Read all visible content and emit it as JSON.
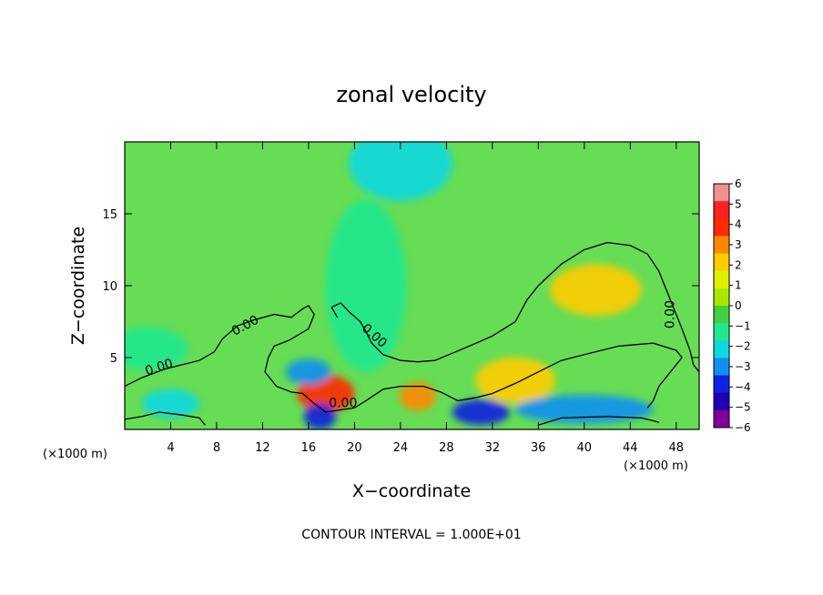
{
  "chart_data": {
    "type": "heatmap",
    "title": "zonal velocity",
    "xlabel": "X−coordinate",
    "ylabel": "Z−coordinate",
    "x_unit": "(×1000 m)",
    "x_range": [
      0,
      50
    ],
    "y_range": [
      0,
      20
    ],
    "x_ticks": [
      4,
      8,
      12,
      16,
      20,
      24,
      28,
      32,
      36,
      40,
      44,
      48
    ],
    "x_tick_labels": [
      "4",
      "8",
      "12",
      "16",
      "20",
      "24",
      "28",
      "32",
      "36",
      "40",
      "44",
      "48"
    ],
    "y_ticks": [
      5,
      10,
      15
    ],
    "y_tick_labels": [
      "5",
      "10",
      "15"
    ],
    "colorbar": {
      "levels": [
        6,
        5,
        4,
        3,
        2,
        1,
        0,
        -1,
        -2,
        -3,
        -4,
        -5,
        -6
      ],
      "labels": [
        "6",
        "5",
        "4",
        "3",
        "2",
        "1",
        "0",
        "−1",
        "−2",
        "−3",
        "−4",
        "−5",
        "−6"
      ],
      "colors": [
        "#f09090",
        "#ff2020",
        "#ff2a00",
        "#ff8800",
        "#ffcc00",
        "#e0f000",
        "#a8e800",
        "#40d040",
        "#20e890",
        "#10d8e0",
        "#1090f0",
        "#1020e0",
        "#2000b0",
        "#800098"
      ]
    },
    "contour_label": "0.00",
    "contour_interval_text": "CONTOUR INTERVAL = 1.000E+01",
    "field_features": [
      {
        "x": 24,
        "z": 18.5,
        "value": -2.6,
        "rx": 4.5,
        "rz": 2.6
      },
      {
        "x": 21,
        "z": 10,
        "value": -1.6,
        "rx": 3.5,
        "rz": 6
      },
      {
        "x": 41,
        "z": 9.7,
        "value": 2.0,
        "rx": 4,
        "rz": 1.8
      },
      {
        "x": 34,
        "z": 3.4,
        "value": 2.4,
        "rx": 3.5,
        "rz": 1.6
      },
      {
        "x": 17.5,
        "z": 2.5,
        "value": 4.4,
        "rx": 2.5,
        "rz": 1.3
      },
      {
        "x": 25.5,
        "z": 2.3,
        "value": 3.8,
        "rx": 1.6,
        "rz": 1.0
      },
      {
        "x": 16,
        "z": 4.0,
        "value": -3.8,
        "rx": 2.0,
        "rz": 0.9
      },
      {
        "x": 17,
        "z": 0.9,
        "value": -4.6,
        "rx": 1.4,
        "rz": 0.9
      },
      {
        "x": 40,
        "z": 1.4,
        "value": -3.2,
        "rx": 6,
        "rz": 1.0
      },
      {
        "x": 31,
        "z": 1.2,
        "value": -4.2,
        "rx": 2.5,
        "rz": 0.9
      },
      {
        "x": 4,
        "z": 1.8,
        "value": -2.8,
        "rx": 2.5,
        "rz": 1.0
      },
      {
        "x": 2,
        "z": 5.6,
        "value": -1.8,
        "rx": 3.5,
        "rz": 1.5
      }
    ],
    "contour_zero": [
      {
        "closed": false,
        "points": [
          [
            0,
            3
          ],
          [
            1.5,
            3.6
          ],
          [
            3.5,
            4.2
          ],
          [
            5,
            4.5
          ],
          [
            6.5,
            4.8
          ],
          [
            7.8,
            5.4
          ],
          [
            8.5,
            6.3
          ],
          [
            9.8,
            7.2
          ],
          [
            11.2,
            7.6
          ],
          [
            13,
            8.0
          ],
          [
            14.5,
            7.8
          ],
          [
            15.5,
            8.4
          ],
          [
            16,
            8.6
          ],
          [
            16.5,
            8.0
          ],
          [
            16,
            7.0
          ],
          [
            14.3,
            6.2
          ],
          [
            13,
            5.8
          ],
          [
            12.5,
            5.0
          ],
          [
            12.2,
            4.0
          ],
          [
            13.2,
            3.0
          ],
          [
            14.5,
            2.6
          ],
          [
            15.5,
            2.5
          ],
          [
            16.5,
            1.8
          ],
          [
            17.5,
            1.2
          ],
          [
            20,
            1.5
          ],
          [
            21,
            2.0
          ],
          [
            22.5,
            2.8
          ],
          [
            24,
            3.0
          ],
          [
            26,
            3.0
          ],
          [
            27.5,
            2.6
          ],
          [
            29,
            2.0
          ],
          [
            30.5,
            2.2
          ],
          [
            32,
            2.5
          ],
          [
            34,
            3.2
          ],
          [
            36,
            4.0
          ],
          [
            38,
            4.8
          ],
          [
            40,
            5.2
          ],
          [
            43,
            5.8
          ],
          [
            46,
            6.0
          ],
          [
            48,
            5.5
          ],
          [
            48.5,
            5.0
          ],
          [
            47.5,
            4.0
          ],
          [
            46.5,
            3.0
          ],
          [
            46,
            2.0
          ],
          [
            45.5,
            1.5
          ]
        ]
      },
      {
        "closed": false,
        "points": [
          [
            18.5,
            7.8
          ],
          [
            18,
            8.5
          ],
          [
            18.8,
            8.8
          ],
          [
            19.5,
            8.2
          ],
          [
            20.5,
            7.5
          ],
          [
            21,
            6.8
          ],
          [
            21.5,
            6.0
          ],
          [
            22.5,
            5.2
          ],
          [
            24,
            4.8
          ],
          [
            25.5,
            4.7
          ],
          [
            27,
            4.8
          ],
          [
            28.5,
            5.3
          ],
          [
            30,
            5.8
          ],
          [
            32,
            6.5
          ],
          [
            34,
            7.5
          ],
          [
            35,
            9.0
          ],
          [
            36,
            10.0
          ],
          [
            38,
            11.5
          ],
          [
            40,
            12.5
          ],
          [
            42,
            13.0
          ],
          [
            44,
            12.8
          ],
          [
            45.5,
            12.2
          ],
          [
            46.5,
            11.0
          ],
          [
            47.5,
            9.0
          ],
          [
            48.5,
            7.0
          ],
          [
            49.2,
            5.5
          ],
          [
            49.5,
            4.5
          ],
          [
            50,
            4.0
          ]
        ]
      },
      {
        "closed": false,
        "points": [
          [
            0,
            0.7
          ],
          [
            1.5,
            0.9
          ],
          [
            3,
            1.2
          ],
          [
            5,
            1.0
          ],
          [
            6.5,
            0.8
          ],
          [
            7,
            0.3
          ]
        ]
      },
      {
        "closed": false,
        "points": [
          [
            36,
            0.3
          ],
          [
            38,
            0.8
          ],
          [
            42,
            0.9
          ],
          [
            45,
            0.8
          ],
          [
            46.5,
            0.5
          ]
        ]
      }
    ],
    "contour_labels": [
      {
        "x": 3,
        "z": 4.3,
        "angle": -18
      },
      {
        "x": 10.5,
        "z": 7.2,
        "angle": -28
      },
      {
        "x": 21.7,
        "z": 6.5,
        "angle": 42
      },
      {
        "x": 19,
        "z": 1.8,
        "angle": 0
      },
      {
        "x": 47.5,
        "z": 8,
        "angle": -90
      }
    ]
  }
}
